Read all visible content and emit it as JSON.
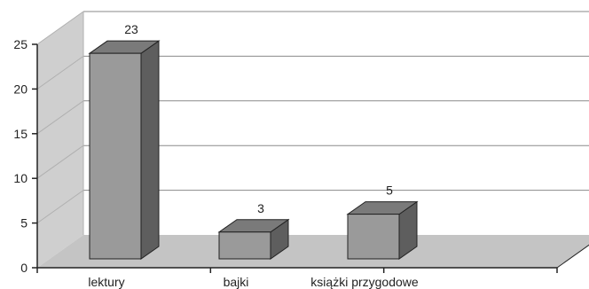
{
  "chart_data": {
    "type": "bar",
    "style": "3d-column",
    "categories": [
      "lektury",
      "bajki",
      "książki  przygodowe"
    ],
    "values": [
      23,
      3,
      5
    ],
    "data_labels": [
      "23",
      "3",
      "5"
    ],
    "yticks": [
      "0",
      "5",
      "10",
      "15",
      "20",
      "25"
    ],
    "ylim": [
      0,
      25
    ],
    "grid": true,
    "legend": "none",
    "colors": {
      "bar_front": "#9a9a9a",
      "bar_top": "#7a7a7a",
      "bar_side": "#5e5e5e",
      "back_wall": "#ffffff",
      "side_wall": "#cfcfcf",
      "floor": "#c4c4c4",
      "gridline": "#8a8a8a",
      "axis": "#222222"
    }
  }
}
